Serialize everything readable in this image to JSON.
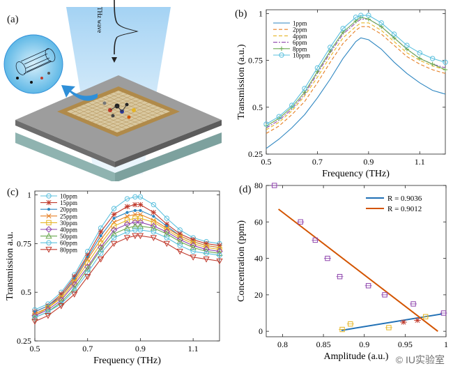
{
  "figure": {
    "panel_labels": [
      "(a)",
      "(b)",
      "(c)",
      "(d)"
    ],
    "panel_a": {
      "beam_label": "THz wave"
    },
    "watermark": "© IU实验室"
  },
  "colors": {
    "beam": "#cfe7f8",
    "substrate_top": "#a9a9a9",
    "substrate_side": "#8fb3b0",
    "metal": "#b08a4a",
    "arrow": "#2f8fd8"
  },
  "chart_data": [
    {
      "id": "b",
      "type": "line",
      "xlabel": "Frequency (THz)",
      "ylabel": "Transmission (a.u.)",
      "xlim": [
        0.5,
        1.2
      ],
      "ylim": [
        0.25,
        1.02
      ],
      "xticks": [
        0.5,
        0.7,
        0.9,
        1.1
      ],
      "yticks": [
        0.25,
        0.5,
        0.75,
        1
      ],
      "xtick_labels": [
        "0.5",
        "0.7",
        "0.9",
        "1.1"
      ],
      "ytick_labels": [
        "0.25",
        "0.5",
        "0.75",
        "1"
      ],
      "legend_position": "top-left",
      "grid": false,
      "x": [
        0.5,
        0.55,
        0.6,
        0.65,
        0.7,
        0.75,
        0.8,
        0.85,
        0.87,
        0.9,
        0.95,
        1.0,
        1.05,
        1.1,
        1.15,
        1.2
      ],
      "series": [
        {
          "name": "1ppm",
          "color": "#2e86c1",
          "dash": "",
          "marker": "none",
          "values": [
            0.28,
            0.33,
            0.39,
            0.46,
            0.55,
            0.65,
            0.76,
            0.85,
            0.87,
            0.86,
            0.81,
            0.74,
            0.68,
            0.63,
            0.59,
            0.57
          ]
        },
        {
          "name": "2ppm",
          "color": "#e67e22",
          "dash": "5,3",
          "marker": "none",
          "values": [
            0.36,
            0.4,
            0.46,
            0.53,
            0.63,
            0.74,
            0.84,
            0.91,
            0.93,
            0.93,
            0.89,
            0.83,
            0.77,
            0.73,
            0.7,
            0.68
          ]
        },
        {
          "name": "4ppm",
          "color": "#e5b524",
          "dash": "5,3",
          "marker": "none",
          "values": [
            0.38,
            0.42,
            0.48,
            0.56,
            0.66,
            0.77,
            0.87,
            0.93,
            0.95,
            0.95,
            0.91,
            0.85,
            0.79,
            0.75,
            0.72,
            0.7
          ]
        },
        {
          "name": "6ppm",
          "color": "#8e44ad",
          "dash": "6,2,2,2",
          "marker": "none",
          "values": [
            0.39,
            0.43,
            0.49,
            0.57,
            0.68,
            0.79,
            0.89,
            0.95,
            0.97,
            0.97,
            0.93,
            0.87,
            0.81,
            0.76,
            0.73,
            0.71
          ]
        },
        {
          "name": "8ppm",
          "color": "#6aa84f",
          "dash": "",
          "marker": "plus",
          "values": [
            0.4,
            0.44,
            0.5,
            0.58,
            0.69,
            0.8,
            0.9,
            0.96,
            0.98,
            0.97,
            0.93,
            0.87,
            0.81,
            0.76,
            0.73,
            0.7
          ]
        },
        {
          "name": "10ppm",
          "color": "#5bc0de",
          "dash": "",
          "marker": "circle",
          "values": [
            0.41,
            0.45,
            0.51,
            0.6,
            0.71,
            0.82,
            0.92,
            0.98,
            0.99,
            0.99,
            0.95,
            0.89,
            0.83,
            0.79,
            0.76,
            0.74
          ]
        }
      ]
    },
    {
      "id": "c",
      "type": "line",
      "xlabel": "Frequency (THz)",
      "ylabel": "Transmission a.u.",
      "xlim": [
        0.5,
        1.2
      ],
      "ylim": [
        0.25,
        1.02
      ],
      "xticks": [
        0.5,
        0.7,
        0.9,
        1.1
      ],
      "yticks": [
        0.25,
        0.5,
        0.75,
        1
      ],
      "xtick_labels": [
        "0.5",
        "0.7",
        "0.9",
        "1.1"
      ],
      "ytick_labels": [
        "0.25",
        "0.5",
        "0.75",
        "1"
      ],
      "legend_position": "top-left",
      "grid": false,
      "x": [
        0.5,
        0.55,
        0.6,
        0.65,
        0.7,
        0.75,
        0.8,
        0.85,
        0.88,
        0.9,
        0.95,
        1.0,
        1.05,
        1.1,
        1.15,
        1.2
      ],
      "series": [
        {
          "name": "10ppm",
          "color": "#5bc0de",
          "dash": "",
          "marker": "circle",
          "values": [
            0.41,
            0.44,
            0.5,
            0.59,
            0.71,
            0.83,
            0.93,
            0.98,
            0.99,
            0.99,
            0.95,
            0.88,
            0.82,
            0.78,
            0.76,
            0.75
          ]
        },
        {
          "name": "15ppm",
          "color": "#c0392b",
          "dash": "",
          "marker": "star",
          "values": [
            0.4,
            0.43,
            0.49,
            0.58,
            0.69,
            0.81,
            0.9,
            0.94,
            0.95,
            0.95,
            0.91,
            0.85,
            0.8,
            0.77,
            0.75,
            0.74
          ]
        },
        {
          "name": "20ppm",
          "color": "#2e86c1",
          "dash": "",
          "marker": "dot",
          "values": [
            0.4,
            0.43,
            0.48,
            0.57,
            0.68,
            0.79,
            0.88,
            0.91,
            0.92,
            0.92,
            0.89,
            0.84,
            0.79,
            0.76,
            0.74,
            0.73
          ]
        },
        {
          "name": "25ppm",
          "color": "#e67e22",
          "dash": "",
          "marker": "x",
          "values": [
            0.39,
            0.42,
            0.48,
            0.56,
            0.67,
            0.77,
            0.86,
            0.89,
            0.9,
            0.9,
            0.87,
            0.83,
            0.79,
            0.76,
            0.74,
            0.73
          ]
        },
        {
          "name": "30ppm",
          "color": "#e5b524",
          "dash": "",
          "marker": "square",
          "values": [
            0.38,
            0.42,
            0.47,
            0.55,
            0.65,
            0.75,
            0.84,
            0.87,
            0.88,
            0.88,
            0.86,
            0.82,
            0.78,
            0.75,
            0.73,
            0.72
          ]
        },
        {
          "name": "40ppm",
          "color": "#8e44ad",
          "dash": "",
          "marker": "diamond",
          "values": [
            0.38,
            0.41,
            0.46,
            0.54,
            0.63,
            0.73,
            0.82,
            0.85,
            0.86,
            0.86,
            0.84,
            0.81,
            0.77,
            0.74,
            0.72,
            0.71
          ]
        },
        {
          "name": "50ppm",
          "color": "#6aa84f",
          "dash": "",
          "marker": "triangle",
          "values": [
            0.37,
            0.4,
            0.45,
            0.52,
            0.62,
            0.72,
            0.8,
            0.83,
            0.84,
            0.84,
            0.83,
            0.8,
            0.76,
            0.73,
            0.71,
            0.7
          ]
        },
        {
          "name": "60ppm",
          "color": "#5bc0de",
          "dash": "",
          "marker": "circle",
          "values": [
            0.37,
            0.4,
            0.44,
            0.51,
            0.6,
            0.7,
            0.78,
            0.81,
            0.82,
            0.82,
            0.81,
            0.78,
            0.74,
            0.71,
            0.7,
            0.69
          ]
        },
        {
          "name": "80ppm",
          "color": "#c0392b",
          "dash": "",
          "marker": "triangle-down",
          "values": [
            0.35,
            0.38,
            0.43,
            0.49,
            0.58,
            0.67,
            0.75,
            0.78,
            0.79,
            0.79,
            0.78,
            0.75,
            0.71,
            0.68,
            0.67,
            0.66
          ]
        }
      ]
    },
    {
      "id": "d",
      "type": "scatter",
      "xlabel": "Amplitude (a.u.)",
      "ylabel": "Concentration (ppm)",
      "xlim": [
        0.78,
        1.0
      ],
      "ylim": [
        -3,
        80
      ],
      "xticks": [
        0.8,
        0.85,
        0.9,
        0.95,
        1.0
      ],
      "yticks": [
        0,
        20,
        40,
        60,
        80
      ],
      "xtick_labels": [
        "0.8",
        "0.85",
        "0.9",
        "0.95",
        "1"
      ],
      "ytick_labels": [
        "0",
        "20",
        "40",
        "60",
        "80"
      ],
      "legend_position": "top-right",
      "grid": false,
      "fits": [
        {
          "name": "R = 0.9036",
          "color": "#1f6fb5",
          "x": [
            0.872,
            0.995
          ],
          "y": [
            0.5,
            9.5
          ]
        },
        {
          "name": "R = 0.9012",
          "color": "#d35400",
          "x": [
            0.795,
            0.99
          ],
          "y": [
            67,
            0
          ]
        }
      ],
      "series": [
        {
          "marker": "square",
          "color": "#8e44ad",
          "x": [
            0.79,
            0.822,
            0.84,
            0.855,
            0.87,
            0.905,
            0.925,
            0.96,
            0.997
          ],
          "y": [
            80,
            60,
            50,
            40,
            30,
            25,
            20,
            15,
            10
          ]
        },
        {
          "marker": "square",
          "color": "#e5b524",
          "x": [
            0.873,
            0.883,
            0.93,
            0.975
          ],
          "y": [
            1,
            4,
            2,
            8
          ]
        },
        {
          "marker": "star",
          "color": "#c0392b",
          "x": [
            0.948,
            0.965
          ],
          "y": [
            5,
            6
          ]
        }
      ]
    }
  ]
}
